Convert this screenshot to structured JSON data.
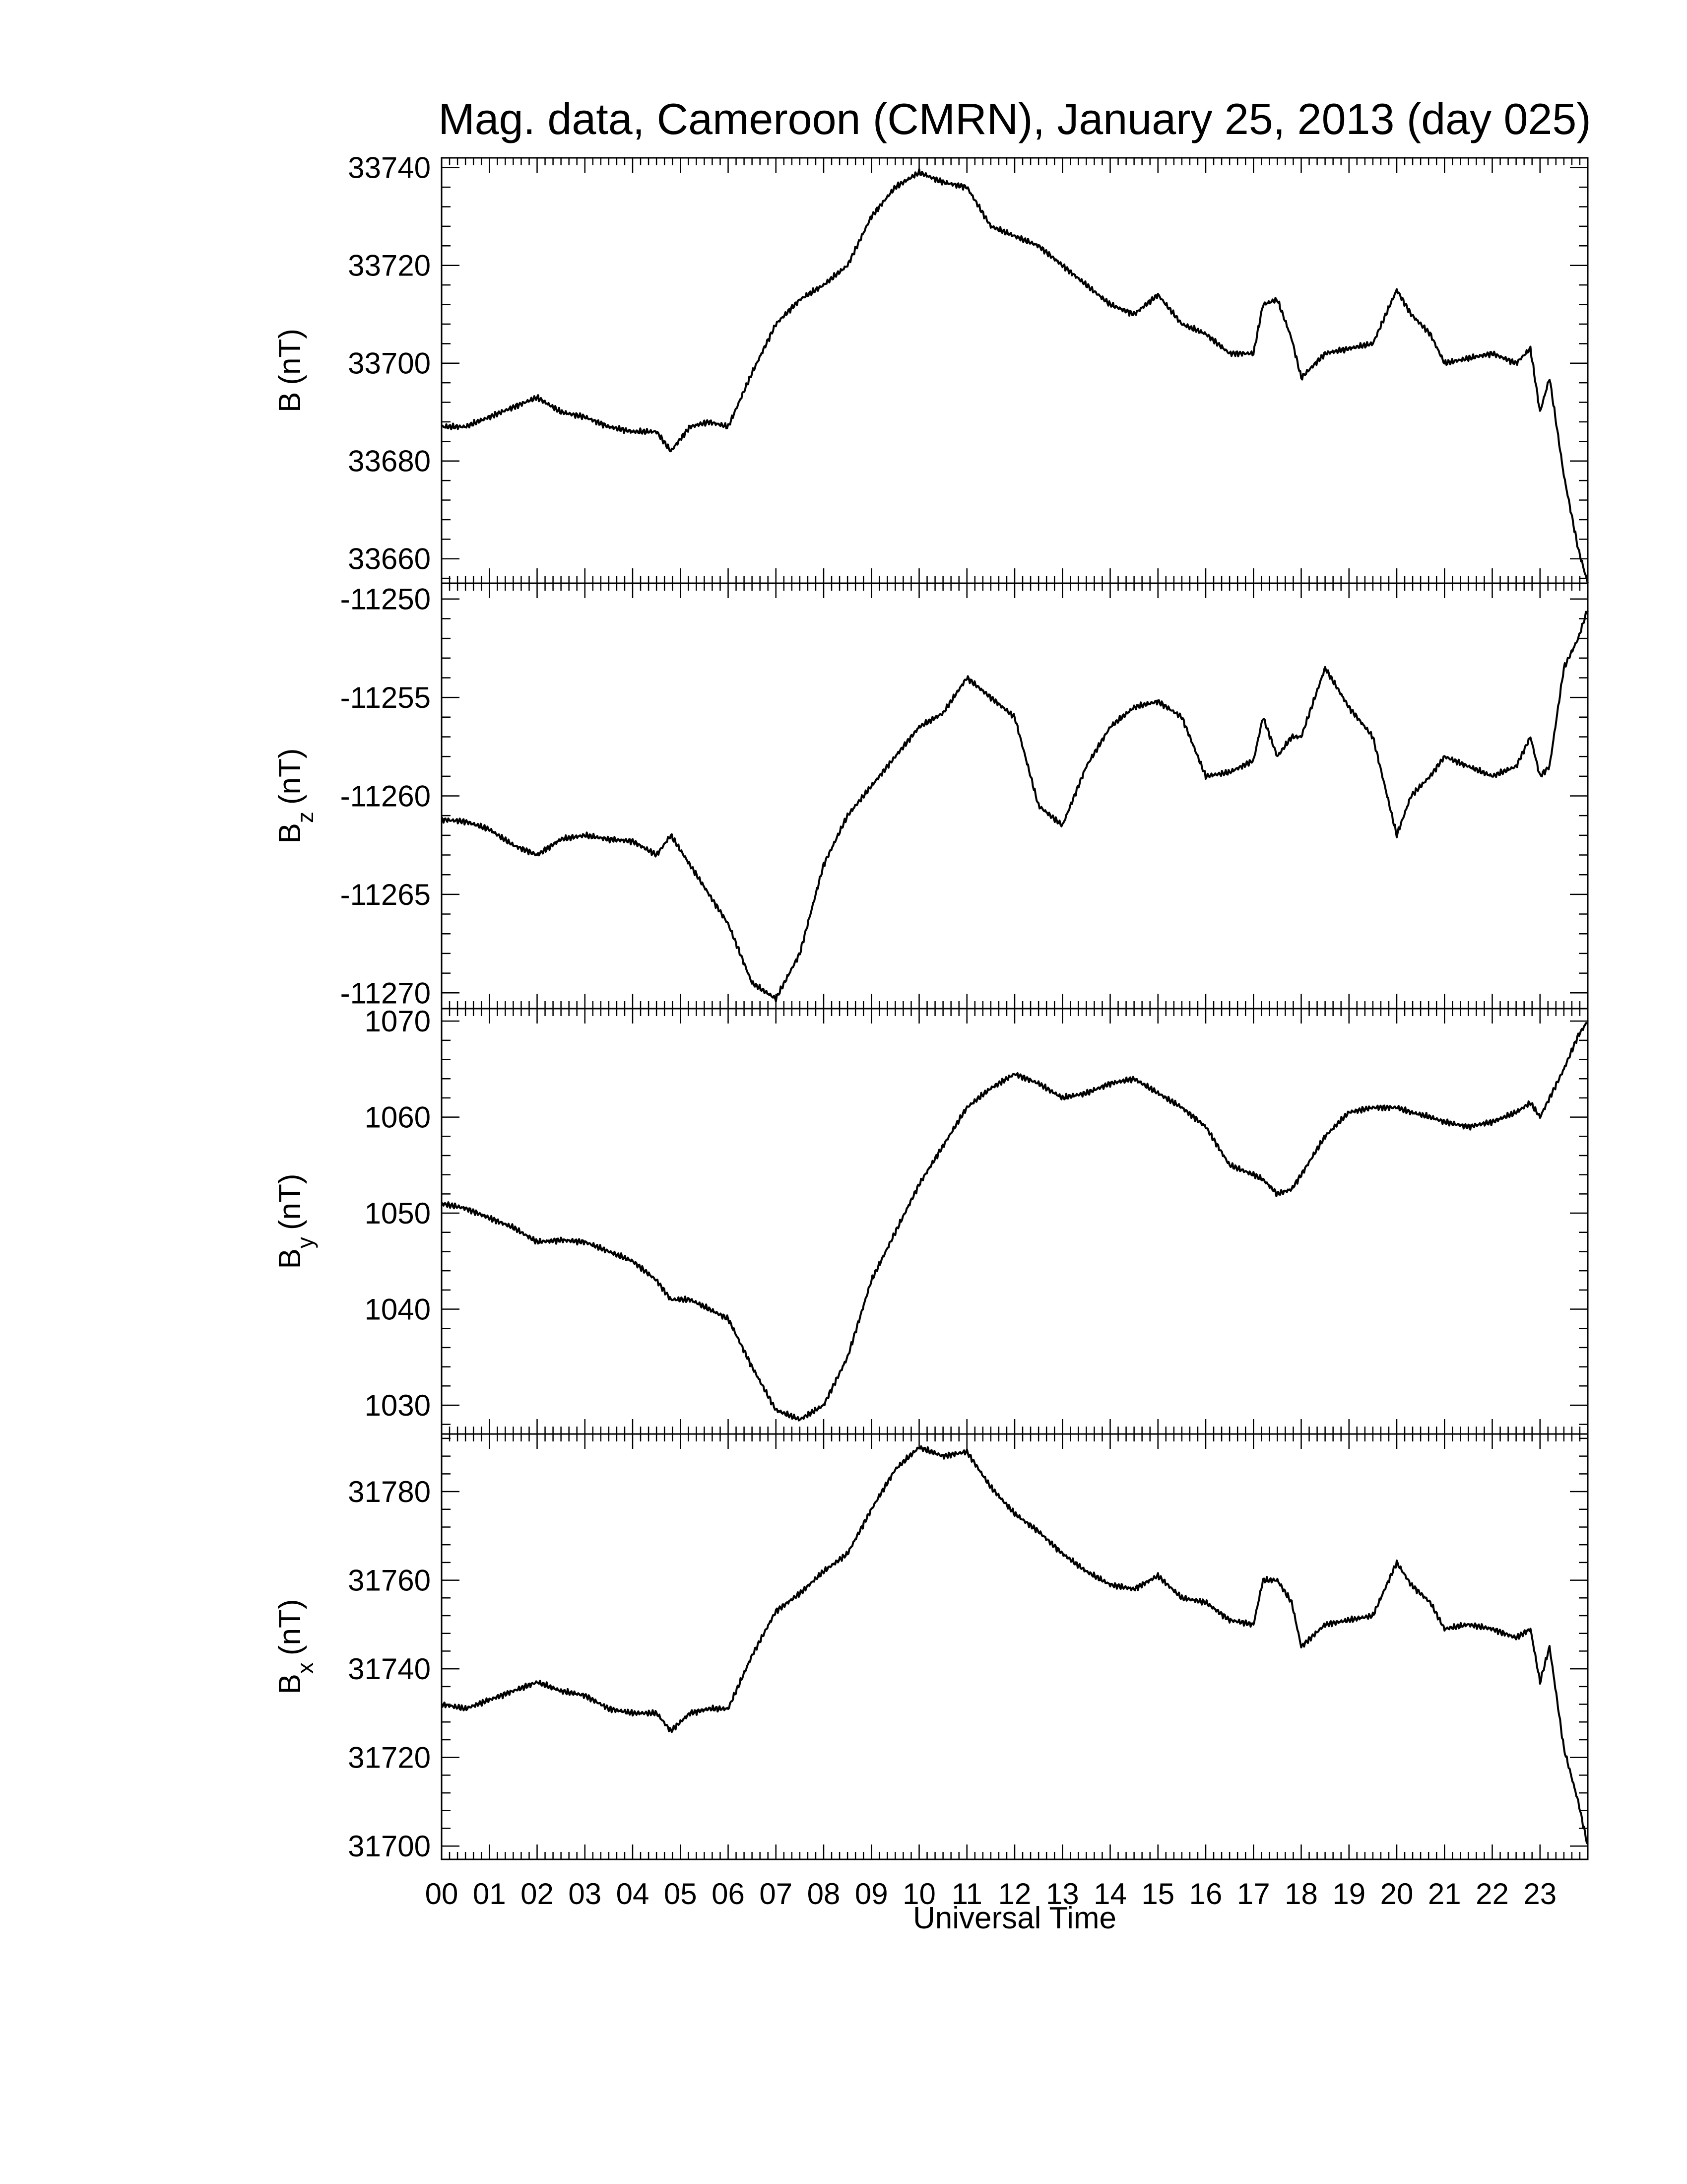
{
  "figure": {
    "title": "Mag. data, Cameroon (CMRN), January 25, 2013 (day 025)",
    "xlabel": "Universal Time"
  },
  "chart_data": [
    {
      "type": "line",
      "title": "Mag. data, Cameroon (CMRN), January 25, 2013 (day 025)",
      "ylabel": "B (nT)",
      "ylabel_main": "B",
      "ylabel_sub": "",
      "ylabel_unit": "(nT)",
      "xlim": [
        0,
        24
      ],
      "ylim": [
        33655,
        33742
      ],
      "yticks": [
        33660,
        33680,
        33700,
        33720,
        33740
      ],
      "series": [
        {
          "x": [
            0,
            0.5,
            1,
            1.5,
            2,
            2.5,
            3,
            3.5,
            4,
            4.5,
            4.8,
            5.2,
            5.6,
            6,
            6.5,
            7,
            7.5,
            8,
            8.5,
            9,
            9.5,
            10,
            10.5,
            11,
            11.5,
            12,
            12.5,
            13,
            13.5,
            14,
            14.5,
            15,
            15.5,
            16,
            16.5,
            17,
            17.2,
            17.5,
            17.8,
            18,
            18.5,
            19,
            19.5,
            20,
            20.3,
            20.7,
            21,
            21.5,
            22,
            22.5,
            22.8,
            23,
            23.2,
            23.5,
            23.8,
            24
          ],
          "y": [
            33687,
            33687,
            33689,
            33691,
            33693,
            33690,
            33689,
            33687,
            33686,
            33686,
            33682,
            33687,
            33688,
            33687,
            33698,
            33708,
            33713,
            33716,
            33720,
            33730,
            33736,
            33739,
            33737,
            33736,
            33728,
            33726,
            33724,
            33720,
            33716,
            33712,
            33710,
            33714,
            33708,
            33706,
            33702,
            33702,
            33712,
            33713,
            33705,
            33697,
            33702,
            33703,
            33704,
            33715,
            33710,
            33706,
            33700,
            33701,
            33702,
            33700,
            33703,
            33690,
            33697,
            33677,
            33662,
            33655
          ]
        }
      ]
    },
    {
      "type": "line",
      "ylabel": "B_z (nT)",
      "ylabel_main": "B",
      "ylabel_sub": "z",
      "ylabel_unit": "(nT)",
      "xlim": [
        0,
        24
      ],
      "ylim": [
        -11270.8,
        -11249.2
      ],
      "yticks": [
        -11270,
        -11265,
        -11260,
        -11255,
        -11250
      ],
      "series": [
        {
          "x": [
            0,
            0.5,
            1,
            1.5,
            2,
            2.5,
            3,
            3.5,
            4,
            4.5,
            4.8,
            5.2,
            5.6,
            6,
            6.5,
            7,
            7.5,
            8,
            8.5,
            9,
            9.5,
            10,
            10.5,
            11,
            11.5,
            12,
            12.5,
            13,
            13.5,
            14,
            14.5,
            15,
            15.5,
            16,
            16.5,
            17,
            17.2,
            17.5,
            17.8,
            18,
            18.5,
            19,
            19.5,
            20,
            20.3,
            20.7,
            21,
            21.5,
            22,
            22.5,
            22.8,
            23,
            23.2,
            23.5,
            23.8,
            24
          ],
          "y": [
            -11261.2,
            -11261.3,
            -11261.7,
            -11262.5,
            -11263,
            -11262.2,
            -11262,
            -11262.2,
            -11262.3,
            -11263,
            -11262,
            -11263.5,
            -11265,
            -11266.5,
            -11269.5,
            -11270.3,
            -11268,
            -11263.5,
            -11261,
            -11259.5,
            -11258,
            -11256.5,
            -11255.8,
            -11254,
            -11255,
            -11256,
            -11260.5,
            -11261.5,
            -11258.5,
            -11256.5,
            -11255.5,
            -11255.2,
            -11256,
            -11259,
            -11258.8,
            -11258.2,
            -11256,
            -11258,
            -11257,
            -11257,
            -11253.5,
            -11255.5,
            -11257,
            -11262,
            -11260,
            -11259,
            -11258,
            -11258.5,
            -11259,
            -11258.5,
            -11257,
            -11259,
            -11258.5,
            -11253.5,
            -11252,
            -11250.5
          ]
        }
      ]
    },
    {
      "type": "line",
      "ylabel": "B_y (nT)",
      "ylabel_main": "B",
      "ylabel_sub": "y",
      "ylabel_unit": "(nT)",
      "xlim": [
        0,
        24
      ],
      "ylim": [
        1027,
        1071.3
      ],
      "yticks": [
        1030,
        1040,
        1050,
        1060,
        1070
      ],
      "series": [
        {
          "x": [
            0,
            0.5,
            1,
            1.5,
            2,
            2.5,
            3,
            3.5,
            4,
            4.5,
            4.8,
            5.2,
            5.6,
            6,
            6.5,
            7,
            7.5,
            8,
            8.5,
            9,
            9.5,
            10,
            10.5,
            11,
            11.5,
            12,
            12.5,
            13,
            13.5,
            14,
            14.5,
            15,
            15.5,
            16,
            16.5,
            17,
            17.2,
            17.5,
            17.8,
            18,
            18.5,
            19,
            19.5,
            20,
            20.3,
            20.7,
            21,
            21.5,
            22,
            22.5,
            22.8,
            23,
            23.2,
            23.5,
            23.8,
            24
          ],
          "y": [
            1051,
            1050.5,
            1049.5,
            1048.5,
            1047,
            1047.2,
            1047,
            1046,
            1045,
            1043,
            1041,
            1041,
            1040,
            1039,
            1034,
            1029.5,
            1028.5,
            1030,
            1035,
            1043,
            1048,
            1053,
            1057,
            1061,
            1063,
            1064.5,
            1063.5,
            1062,
            1062.5,
            1063.5,
            1064,
            1062.5,
            1061,
            1059,
            1055,
            1054,
            1053.5,
            1052,
            1052.5,
            1054,
            1058,
            1060.5,
            1061,
            1061,
            1060.5,
            1060,
            1059.5,
            1059,
            1059.5,
            1060.5,
            1061.5,
            1060,
            1062,
            1065,
            1068.5,
            1070
          ]
        }
      ]
    },
    {
      "type": "line",
      "ylabel": "B_x (nT)",
      "ylabel_main": "B",
      "ylabel_sub": "x",
      "ylabel_unit": "(nT)",
      "xlim": [
        0,
        24
      ],
      "ylim": [
        31697,
        31793
      ],
      "yticks": [
        31700,
        31720,
        31740,
        31760,
        31780
      ],
      "series": [
        {
          "x": [
            0,
            0.5,
            1,
            1.5,
            2,
            2.5,
            3,
            3.5,
            4,
            4.5,
            4.8,
            5.2,
            5.6,
            6,
            6.5,
            7,
            7.5,
            8,
            8.5,
            9,
            9.5,
            10,
            10.5,
            11,
            11.5,
            12,
            12.5,
            13,
            13.5,
            14,
            14.5,
            15,
            15.5,
            16,
            16.5,
            17,
            17.2,
            17.5,
            17.8,
            18,
            18.5,
            19,
            19.5,
            20,
            20.3,
            20.7,
            21,
            21.5,
            22,
            22.5,
            22.8,
            23,
            23.2,
            23.5,
            23.8,
            24
          ],
          "y": [
            31732,
            31731,
            31733,
            31735,
            31737,
            31735,
            31734,
            31731,
            31730,
            31730,
            31726,
            31730,
            31731,
            31731,
            31743,
            31753,
            31757,
            31762,
            31766,
            31776,
            31785,
            31790,
            31788,
            31789,
            31781,
            31775,
            31771,
            31766,
            31762,
            31759,
            31758,
            31761,
            31756,
            31755,
            31751,
            31750,
            31760,
            31760,
            31755,
            31745,
            31750,
            31751,
            31752,
            31764,
            31759,
            31755,
            31749,
            31750,
            31749,
            31747,
            31749,
            31737,
            31745,
            31722,
            31710,
            31700
          ]
        }
      ]
    }
  ],
  "x_tick_labels": [
    "00",
    "01",
    "02",
    "03",
    "04",
    "05",
    "06",
    "07",
    "08",
    "09",
    "10",
    "11",
    "12",
    "13",
    "14",
    "15",
    "16",
    "17",
    "18",
    "19",
    "20",
    "21",
    "22",
    "23"
  ]
}
